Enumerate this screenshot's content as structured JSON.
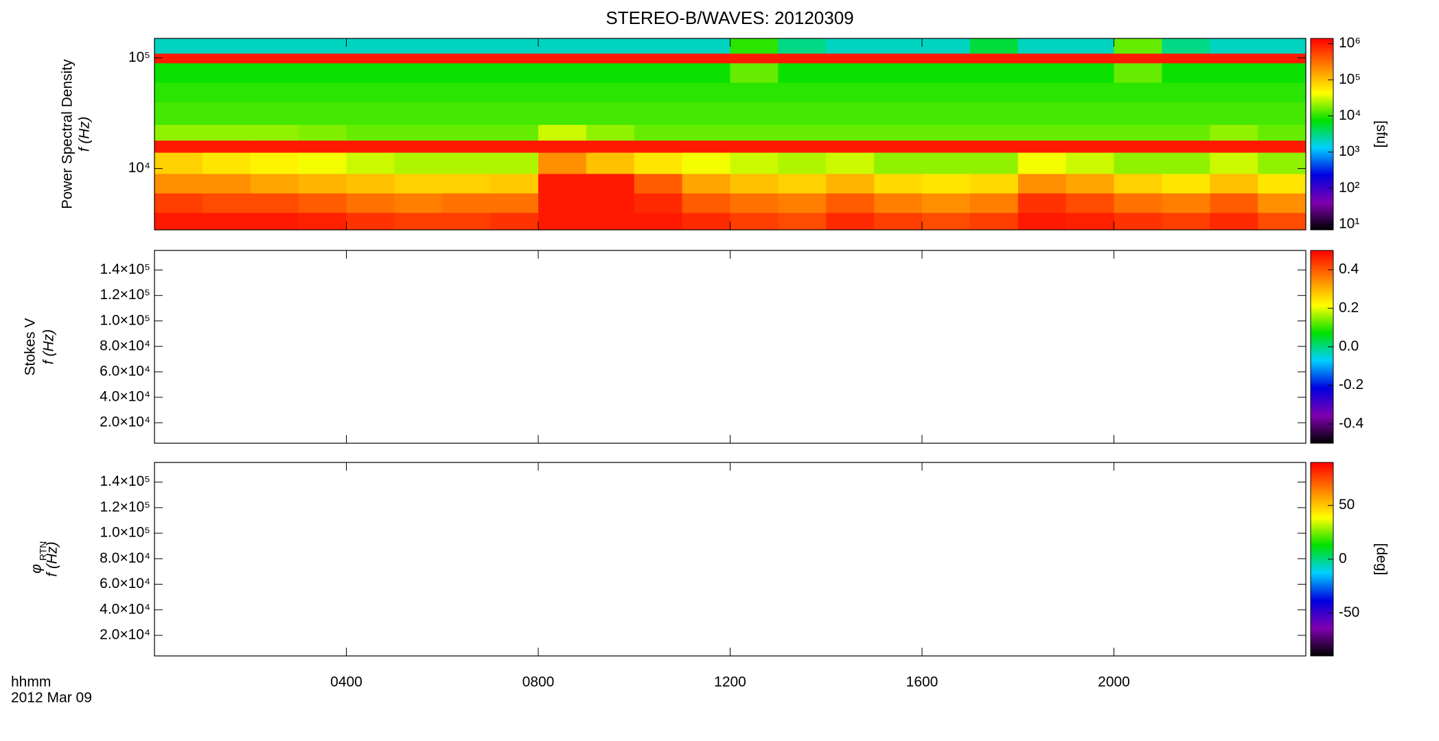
{
  "chart_data": [
    {
      "type": "heatmap",
      "title": "STEREO-B/WAVES: 20120309",
      "ylabel": "Power Spectral Density",
      "ylabel2": "f (Hz)",
      "xlim": [
        0,
        24
      ],
      "log_y": true,
      "ylim": [
        2790,
        150000
      ],
      "yticks": [
        {
          "value": 10000,
          "label": "10⁴"
        },
        {
          "value": 100000,
          "label": "10⁵"
        }
      ],
      "x_bins": [
        0,
        1,
        2,
        3,
        4,
        5,
        6,
        7,
        8,
        9,
        10,
        11,
        12,
        13,
        14,
        15,
        16,
        17,
        18,
        19,
        20,
        21,
        22,
        23,
        24
      ],
      "y_bins": [
        2790,
        4000,
        6000,
        9000,
        14000,
        18000,
        25000,
        40000,
        60000,
        90000,
        110000,
        150000
      ],
      "z": [
        [
          1000000,
          1000000,
          1000000,
          900000,
          700000,
          600000,
          600000,
          700000,
          1000000,
          1000000,
          1000000,
          800000,
          600000,
          500000,
          800000,
          600000,
          500000,
          600000,
          1000000,
          900000,
          700000,
          600000,
          800000,
          500000
        ],
        [
          600000,
          500000,
          500000,
          400000,
          300000,
          250000,
          300000,
          300000,
          1000000,
          1000000,
          800000,
          400000,
          300000,
          250000,
          400000,
          250000,
          200000,
          250000,
          700000,
          500000,
          300000,
          250000,
          400000,
          200000
        ],
        [
          200000,
          200000,
          150000,
          120000,
          100000,
          80000,
          80000,
          90000,
          1000000,
          1000000,
          400000,
          150000,
          100000,
          80000,
          120000,
          70000,
          60000,
          70000,
          200000,
          150000,
          80000,
          60000,
          100000,
          60000
        ],
        [
          80000,
          60000,
          50000,
          40000,
          30000,
          25000,
          25000,
          25000,
          200000,
          100000,
          60000,
          40000,
          30000,
          25000,
          30000,
          20000,
          20000,
          20000,
          40000,
          30000,
          20000,
          20000,
          30000,
          20000
        ],
        [
          1000000,
          1000000,
          1000000,
          1000000,
          1000000,
          1000000,
          1000000,
          1000000,
          1000000,
          1000000,
          1000000,
          1000000,
          1000000,
          1000000,
          1000000,
          1000000,
          1000000,
          1000000,
          1000000,
          1000000,
          1000000,
          1000000,
          1000000,
          1000000
        ],
        [
          20000,
          20000,
          20000,
          18000,
          15000,
          15000,
          15000,
          15000,
          30000,
          20000,
          15000,
          15000,
          15000,
          15000,
          15000,
          15000,
          15000,
          15000,
          15000,
          15000,
          15000,
          15000,
          20000,
          15000
        ],
        [
          12000,
          12000,
          12000,
          12000,
          12000,
          12000,
          12000,
          12000,
          12000,
          12000,
          12000,
          12000,
          12000,
          12000,
          12000,
          12000,
          12000,
          12000,
          12000,
          12000,
          12000,
          12000,
          12000,
          12000
        ],
        [
          10000,
          10000,
          10000,
          10000,
          10000,
          10000,
          10000,
          10000,
          10000,
          10000,
          10000,
          10000,
          10000,
          10000,
          10000,
          10000,
          10000,
          10000,
          10000,
          10000,
          10000,
          10000,
          10000,
          10000
        ],
        [
          8000,
          8000,
          8000,
          8000,
          8000,
          8000,
          8000,
          8000,
          8000,
          8000,
          8000,
          8000,
          15000,
          8000,
          8000,
          8000,
          8000,
          8000,
          8000,
          8000,
          15000,
          8000,
          8000,
          8000
        ],
        [
          1000000,
          1000000,
          1000000,
          1000000,
          1000000,
          1000000,
          1000000,
          1000000,
          1000000,
          1000000,
          1000000,
          1000000,
          1000000,
          1000000,
          1000000,
          1000000,
          1000000,
          1000000,
          1000000,
          1000000,
          1000000,
          1000000,
          1000000,
          1000000
        ],
        [
          2000,
          2000,
          2000,
          2000,
          2000,
          2000,
          2000,
          2000,
          2000,
          2000,
          2000,
          2000,
          10000,
          3000,
          2000,
          2000,
          2000,
          5000,
          2000,
          2000,
          15000,
          3000,
          2000,
          2000
        ]
      ],
      "colorbar": {
        "log": true,
        "lim": [
          7,
          1400000
        ],
        "label": "[sfu]",
        "ticks": [
          {
            "value": 10,
            "label": "10¹"
          },
          {
            "value": 100,
            "label": "10²"
          },
          {
            "value": 1000,
            "label": "10³"
          },
          {
            "value": 10000,
            "label": "10⁴"
          },
          {
            "value": 100000,
            "label": "10⁵"
          },
          {
            "value": 1000000,
            "label": "10⁶"
          }
        ]
      },
      "colormap": [
        "#000000",
        "#8000b0",
        "#0000e0",
        "#00d0ff",
        "#00e000",
        "#ffff00",
        "#ff8000",
        "#ff0000"
      ]
    },
    {
      "type": "heatmap",
      "ylabel": "Stokes V",
      "ylabel2": "f (Hz)",
      "xlim": [
        0,
        24
      ],
      "ylim": [
        3900,
        155400
      ],
      "yticks": [
        {
          "value": 20000,
          "label": "2.0×10⁴"
        },
        {
          "value": 40000,
          "label": "4.0×10⁴"
        },
        {
          "value": 60000,
          "label": "6.0×10⁴"
        },
        {
          "value": 80000,
          "label": "8.0×10⁴"
        },
        {
          "value": 100000,
          "label": "1.0×10⁵"
        },
        {
          "value": 120000,
          "label": "1.2×10⁵"
        },
        {
          "value": 140000,
          "label": "1.4×10⁵"
        }
      ],
      "colorbar": {
        "lim": [
          -0.5,
          0.5
        ],
        "ticks": [
          -0.4,
          -0.2,
          {
            "value": 0,
            "label": "0.0"
          },
          0.2,
          0.4
        ]
      },
      "colormap": [
        "#000000",
        "#8000b0",
        "#0000e0",
        "#00d0ff",
        "#00e000",
        "#ffff00",
        "#ff8000",
        "#ff0000"
      ]
    },
    {
      "type": "heatmap",
      "ylabel": "φ",
      "ylabel_sub": "RTN",
      "ylabel2": "f (Hz)",
      "xlim": [
        0,
        24
      ],
      "ylim": [
        3900,
        155400
      ],
      "yticks": [
        {
          "value": 20000,
          "label": "2.0×10⁴"
        },
        {
          "value": 40000,
          "label": "4.0×10⁴"
        },
        {
          "value": 60000,
          "label": "6.0×10⁴"
        },
        {
          "value": 80000,
          "label": "8.0×10⁴"
        },
        {
          "value": 100000,
          "label": "1.0×10⁵"
        },
        {
          "value": 120000,
          "label": "1.2×10⁵"
        },
        {
          "value": 140000,
          "label": "1.4×10⁵"
        }
      ],
      "xticks": [
        {
          "value": 4,
          "label": "0400"
        },
        {
          "value": 8,
          "label": "0800"
        },
        {
          "value": 12,
          "label": "1200"
        },
        {
          "value": 16,
          "label": "1600"
        },
        {
          "value": 20,
          "label": "2000"
        }
      ],
      "xlabel": "hhmm",
      "date_label": "2012 Mar 09",
      "colorbar": {
        "lim": [
          -90,
          90
        ],
        "label": "[deg]",
        "ticks": [
          -50,
          0,
          50
        ]
      },
      "colormap": [
        "#000000",
        "#8000b0",
        "#0000e0",
        "#00d0ff",
        "#00e000",
        "#ffff00",
        "#ff8000",
        "#ff0000"
      ]
    }
  ]
}
